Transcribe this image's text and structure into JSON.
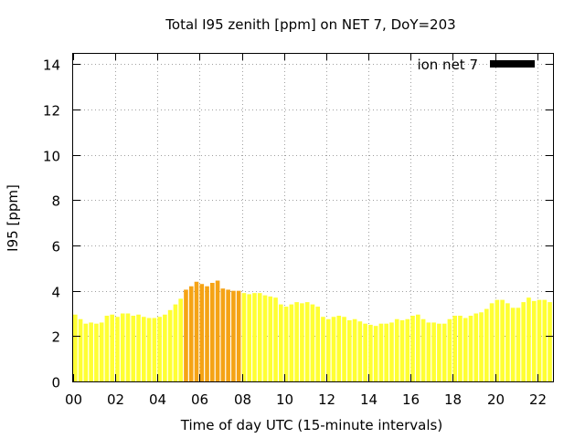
{
  "chart_data": {
    "type": "bar",
    "title": "Total I95 zenith [ppm] on NET 7, DoY=203",
    "xlabel": "Time of day UTC (15-minute intervals)",
    "ylabel": "I95 [ppm]",
    "xlim": [
      0,
      22.75
    ],
    "ylim": [
      0,
      14.5
    ],
    "yticks": [
      "0",
      "2",
      "4",
      "6",
      "8",
      "10",
      "12",
      "14"
    ],
    "xticks": [
      "00",
      "02",
      "04",
      "06",
      "08",
      "10",
      "12",
      "14",
      "16",
      "18",
      "20",
      "22"
    ],
    "grid": true,
    "legend_position": "top-right",
    "series": [
      {
        "name": "ion net 7",
        "legend_color": "#000000",
        "default_color": "#ffff33",
        "highlight_color": "#f5a315",
        "highlight_threshold": 4.0,
        "x_start_hour": 0,
        "x_step_hours": 0.25,
        "values": [
          2.95,
          2.75,
          2.55,
          2.6,
          2.55,
          2.6,
          2.9,
          2.95,
          2.85,
          3.0,
          3.0,
          2.9,
          2.95,
          2.85,
          2.8,
          2.8,
          2.85,
          2.95,
          3.15,
          3.4,
          3.65,
          4.05,
          4.2,
          4.4,
          4.3,
          4.2,
          4.35,
          4.45,
          4.1,
          4.05,
          4.0,
          4.0,
          3.9,
          3.85,
          3.9,
          3.9,
          3.8,
          3.75,
          3.7,
          3.4,
          3.3,
          3.4,
          3.5,
          3.45,
          3.5,
          3.4,
          3.3,
          2.85,
          2.75,
          2.85,
          2.9,
          2.85,
          2.7,
          2.75,
          2.65,
          2.55,
          2.5,
          2.45,
          2.55,
          2.55,
          2.6,
          2.75,
          2.7,
          2.75,
          2.9,
          2.95,
          2.75,
          2.6,
          2.6,
          2.55,
          2.55,
          2.75,
          2.9,
          2.9,
          2.8,
          2.9,
          3.0,
          3.05,
          3.2,
          3.45,
          3.6,
          3.6,
          3.45,
          3.25,
          3.25,
          3.5,
          3.7,
          3.55,
          3.6,
          3.6,
          3.5,
          3.3,
          3.4
        ]
      }
    ]
  }
}
